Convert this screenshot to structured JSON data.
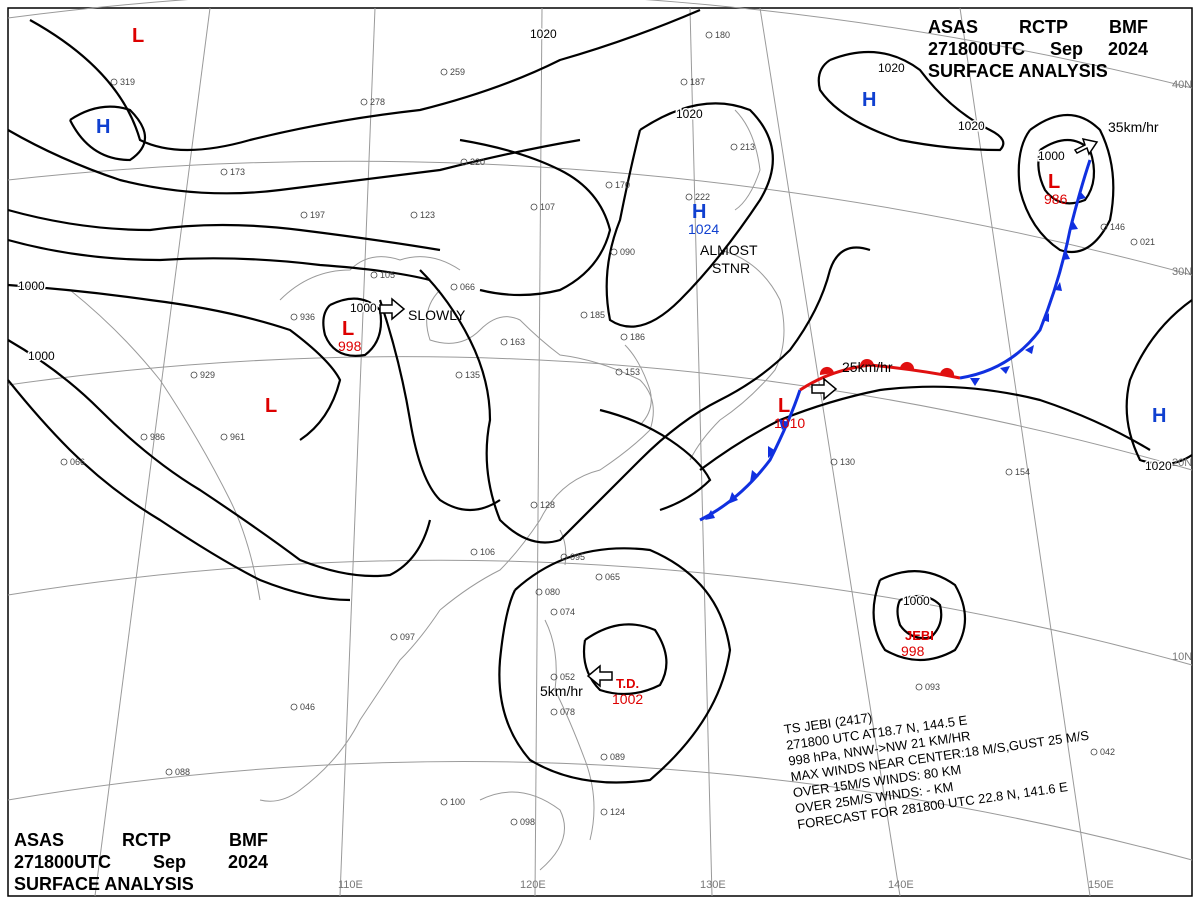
{
  "header": {
    "line1": [
      "ASAS",
      "RCTP",
      "BMF"
    ],
    "line2": [
      "271800UTC",
      "Sep",
      "2024"
    ],
    "line3": "SURFACE ANALYSIS"
  },
  "grid_labels": {
    "lat": [
      "40N",
      "30N",
      "20N",
      "10N"
    ],
    "lon": [
      "110E",
      "120E",
      "130E",
      "140E",
      "150E"
    ]
  },
  "isobar_labels": [
    "1020",
    "1020",
    "1020",
    "1020",
    "1020",
    "1000",
    "1000",
    "1000",
    "1000",
    "1000"
  ],
  "systems": [
    {
      "symbol": "L",
      "color": "#dd0000"
    },
    {
      "symbol": "H",
      "color": "#1040d0"
    },
    {
      "symbol": "H",
      "color": "#1040d0",
      "pressure": "1024"
    },
    {
      "symbol": "H",
      "color": "#1040d0"
    },
    {
      "symbol": "H",
      "color": "#1040d0"
    },
    {
      "symbol": "L",
      "color": "#dd0000",
      "pressure": "998"
    },
    {
      "symbol": "L",
      "color": "#dd0000"
    },
    {
      "symbol": "L",
      "color": "#dd0000",
      "pressure": "1010"
    },
    {
      "symbol": "L",
      "color": "#dd0000",
      "pressure": "986"
    },
    {
      "symbol": "T.D.",
      "color": "#dd0000",
      "pressure": "1002"
    },
    {
      "symbol": "JEBI",
      "color": "#dd0000",
      "pressure": "998"
    }
  ],
  "motions": [
    "SLOWLY",
    "ALMOST STNR",
    "25km/hr",
    "35km/hr",
    "5km/hr"
  ],
  "storm_info": [
    "TS JEBI (2417)",
    "271800 UTC AT18.7 N, 144.5 E",
    "998 hPa, NNW->NW 21 KM/HR",
    "MAX WINDS NEAR CENTER:18 M/S,GUST 25 M/S",
    "OVER 15M/S WINDS: 80 KM",
    "OVER 25M/S WINDS: - KM",
    "FORECAST FOR 281800 UTC 22.8 N, 141.6 E"
  ],
  "station_numbers": [
    "319",
    "259",
    "278",
    "220",
    "173",
    "197",
    "123",
    "107",
    "170",
    "090",
    "105",
    "066",
    "936",
    "929",
    "986",
    "961",
    "066",
    "135",
    "163",
    "185",
    "186",
    "153",
    "128",
    "106",
    "095",
    "065",
    "074",
    "080",
    "097",
    "052",
    "078",
    "089",
    "124",
    "100",
    "098",
    "088",
    "154",
    "130",
    "093",
    "042",
    "146",
    "213",
    "222",
    "187",
    "180",
    "021",
    "046"
  ],
  "colors": {
    "isobar": "#000000",
    "cold_front": "#1030e0",
    "warm_front": "#e01010",
    "grid": "#999999",
    "coast": "#9a9a9a"
  }
}
